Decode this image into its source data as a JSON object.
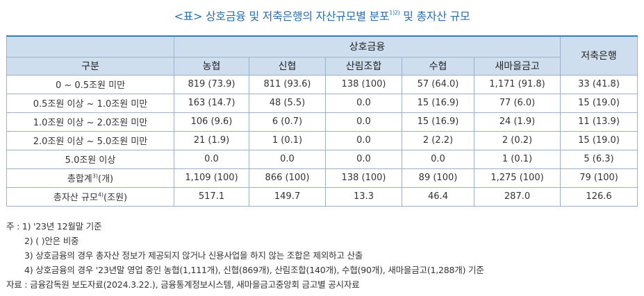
{
  "title": {
    "text": "<표> 상호금융 및 저축은행의 자산규모별 분포",
    "sup": "1)2)",
    "suffix": " 및 총자산 규모"
  },
  "table": {
    "group_header": "상호금융",
    "col_category": "구분",
    "col_bank": "저축은행",
    "sub_columns": [
      "농협",
      "신협",
      "산림조합",
      "수협",
      "새마을금고"
    ],
    "rows": [
      {
        "label": "0 ~ 0.5조원 미만",
        "label_sup": "",
        "label_tail": "",
        "values": [
          "819 (73.9)",
          "811 (93.6)",
          "138 (100)",
          "57 (64.0)",
          "1,171 (91.8)",
          "33 (41.8)"
        ]
      },
      {
        "label": "0.5조원 이상 ~ 1.0조원 미만",
        "label_sup": "",
        "label_tail": "",
        "values": [
          "163 (14.7)",
          "48 (5.5)",
          "0.0",
          "15 (16.9)",
          "77 (6.0)",
          "15 (19.0)"
        ]
      },
      {
        "label": "1.0조원 이상 ~ 2.0조원 미만",
        "label_sup": "",
        "label_tail": "",
        "values": [
          "106 (9.6)",
          "6 (0.7)",
          "0.0",
          "15 (16.9)",
          "24 (1.9)",
          "11 (13.9)"
        ]
      },
      {
        "label": "2.0조원 이상 ~ 5.0조원 미만",
        "label_sup": "",
        "label_tail": "",
        "values": [
          "21 (1.9)",
          "1 (0.1)",
          "0.0",
          "2 (2.2)",
          "2 (0.2)",
          "15 (19.0)"
        ]
      },
      {
        "label": "5.0조원 이상",
        "label_sup": "",
        "label_tail": "",
        "values": [
          "0.0",
          "0.0",
          "0.0",
          "0.0",
          "1 (0.1)",
          "5 (6.3)"
        ]
      },
      {
        "label": "총합계",
        "label_sup": "3)",
        "label_tail": "(개)",
        "values": [
          "1,109 (100)",
          "866 (100)",
          "138 (100)",
          "89 (100)",
          "1,275 (100)",
          "79 (100)"
        ]
      },
      {
        "label": "총자산 규모",
        "label_sup": "4)",
        "label_tail": "(조원)",
        "values": [
          "517.1",
          "149.7",
          "13.3",
          "46.4",
          "287.0",
          "126.6"
        ]
      }
    ]
  },
  "notes": [
    "주 : 1) '23년 12월말 기준",
    "2) ( )안은 비중",
    "3) 상호금융의 경우 총자산 정보가 제공되지 않거나 신용사업을 하지 않는 조합은 제외하고 산출",
    "4) 상호금융의 경우 '23년말 영업 중인 농협(1,111개), 신협(869개), 산림조합(140개), 수협(90개), 새마을금고(1,288개) 기준",
    "자료 : 금융감독원 보도자료(2024.3.22.), 금융통계정보시스템, 새마을금고중앙회 금고별 공시자료"
  ]
}
